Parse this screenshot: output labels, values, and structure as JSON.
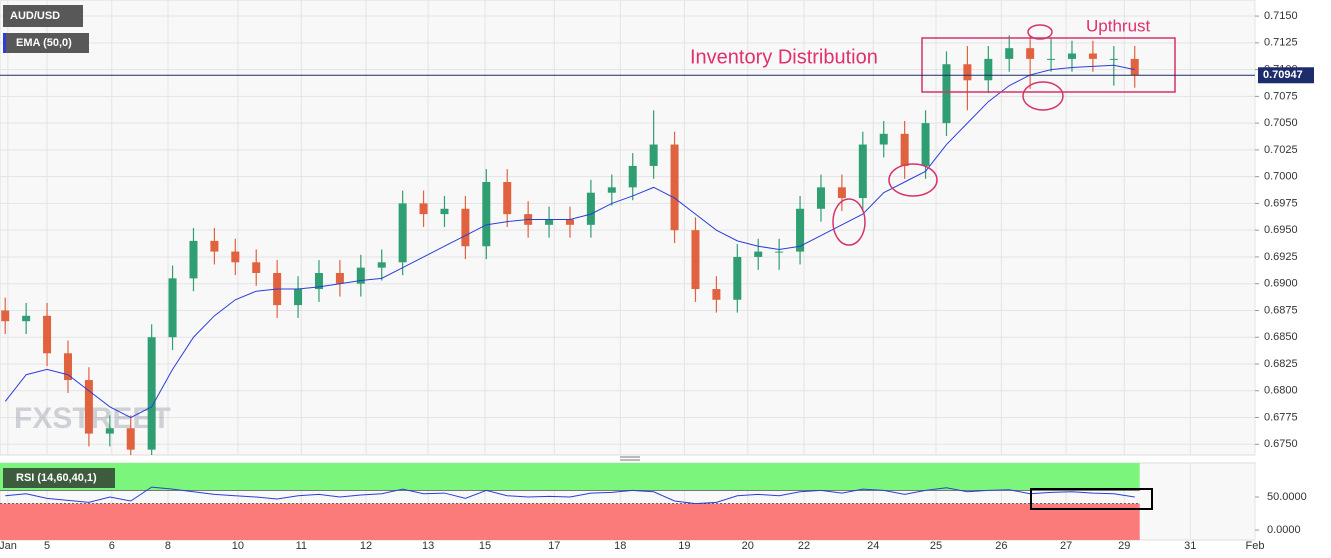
{
  "chart_data": [
    {
      "type": "candlestick",
      "title": "AUD/USD",
      "watermark": "FXSTREET",
      "annotations": [
        "Inventory Distribution",
        "Upthrust"
      ],
      "x": [
        0.08,
        0.4,
        0.72,
        1.04,
        1.36,
        1.68,
        2.0,
        2.32,
        2.64,
        2.96,
        3.28,
        3.6,
        3.92,
        4.24,
        4.56,
        4.88,
        5.2,
        5.52,
        5.84,
        6.16,
        6.48,
        6.8,
        7.12,
        7.44,
        7.76,
        8.08,
        8.4,
        8.72,
        9.04,
        9.36,
        9.68,
        10.0,
        10.32,
        10.64,
        10.96,
        11.28,
        11.6,
        11.92,
        12.24,
        12.56,
        12.88,
        13.2,
        13.52,
        13.84,
        14.16,
        14.48,
        14.8,
        15.12,
        15.44,
        15.76,
        16.08,
        16.4,
        16.72,
        17.04,
        17.36
      ],
      "open": [
        0.6875,
        0.6865,
        0.687,
        0.6835,
        0.681,
        0.676,
        0.6765,
        0.6745,
        0.685,
        0.6905,
        0.694,
        0.693,
        0.692,
        0.691,
        0.688,
        0.6895,
        0.691,
        0.69,
        0.6915,
        0.692,
        0.6975,
        0.6965,
        0.697,
        0.6935,
        0.6995,
        0.6965,
        0.6955,
        0.696,
        0.6955,
        0.6985,
        0.699,
        0.701,
        0.703,
        0.695,
        0.6895,
        0.6885,
        0.6925,
        0.693,
        0.693,
        0.697,
        0.699,
        0.698,
        0.703,
        0.704,
        0.701,
        0.705,
        0.7105,
        0.709,
        0.711,
        0.712,
        0.711,
        0.711,
        0.7115,
        0.711,
        0.711
      ],
      "high": [
        0.6887,
        0.6882,
        0.6882,
        0.6847,
        0.6822,
        0.6777,
        0.6777,
        0.6862,
        0.6917,
        0.6952,
        0.6952,
        0.6942,
        0.6932,
        0.6922,
        0.6907,
        0.6922,
        0.6922,
        0.6927,
        0.6932,
        0.6987,
        0.6987,
        0.6982,
        0.6982,
        0.7007,
        0.7007,
        0.6977,
        0.6972,
        0.6972,
        0.6997,
        0.7002,
        0.7022,
        0.7062,
        0.7042,
        0.6962,
        0.6907,
        0.6937,
        0.6942,
        0.6942,
        0.6982,
        0.7002,
        0.7002,
        0.7042,
        0.7052,
        0.7052,
        0.7062,
        0.7117,
        0.7122,
        0.7122,
        0.7132,
        0.7132,
        0.713,
        0.7127,
        0.7127,
        0.7122,
        0.7122
      ],
      "low": [
        0.6853,
        0.6853,
        0.6823,
        0.6798,
        0.6748,
        0.6748,
        0.6733,
        0.6733,
        0.6838,
        0.6893,
        0.6918,
        0.6908,
        0.6898,
        0.6868,
        0.6868,
        0.6883,
        0.6888,
        0.6888,
        0.6903,
        0.6908,
        0.6953,
        0.6953,
        0.6923,
        0.6923,
        0.6953,
        0.6943,
        0.6943,
        0.6943,
        0.6943,
        0.6973,
        0.6978,
        0.6998,
        0.6938,
        0.6883,
        0.6873,
        0.6873,
        0.6913,
        0.6913,
        0.6918,
        0.6958,
        0.6968,
        0.6968,
        0.7018,
        0.6998,
        0.6998,
        0.7038,
        0.7062,
        0.7078,
        0.7098,
        0.7082,
        0.7098,
        0.7098,
        0.7098,
        0.7085,
        0.7083
      ],
      "close": [
        0.6865,
        0.687,
        0.6835,
        0.681,
        0.676,
        0.6765,
        0.6745,
        0.685,
        0.6905,
        0.694,
        0.693,
        0.692,
        0.691,
        0.688,
        0.6895,
        0.691,
        0.69,
        0.6915,
        0.692,
        0.6975,
        0.6965,
        0.697,
        0.6935,
        0.6995,
        0.6965,
        0.6955,
        0.696,
        0.6955,
        0.6985,
        0.699,
        0.701,
        0.703,
        0.695,
        0.6895,
        0.6885,
        0.6925,
        0.693,
        0.693,
        0.697,
        0.699,
        0.698,
        0.703,
        0.704,
        0.701,
        0.705,
        0.7105,
        0.709,
        0.711,
        0.712,
        0.711,
        0.711,
        0.7115,
        0.711,
        0.711,
        0.70947
      ],
      "up_color": "#2f9e72",
      "down_color": "#e0623f",
      "ema": {
        "name": "EMA (50,0)",
        "color": "#2b3fd8",
        "values": [
          0.679,
          0.6815,
          0.682,
          0.6815,
          0.68,
          0.6785,
          0.6775,
          0.6785,
          0.682,
          0.685,
          0.687,
          0.6885,
          0.6893,
          0.6895,
          0.6895,
          0.6897,
          0.69,
          0.6903,
          0.6905,
          0.6915,
          0.6925,
          0.6935,
          0.6945,
          0.6955,
          0.6958,
          0.696,
          0.696,
          0.696,
          0.6965,
          0.6975,
          0.6982,
          0.699,
          0.698,
          0.6965,
          0.695,
          0.694,
          0.6935,
          0.6932,
          0.6935,
          0.6945,
          0.6955,
          0.6965,
          0.6985,
          0.6995,
          0.7005,
          0.703,
          0.705,
          0.707,
          0.7085,
          0.7095,
          0.71,
          0.7102,
          0.7103,
          0.7104,
          0.71
        ]
      },
      "xlim": [
        0,
        19.2
      ],
      "xticks": [
        {
          "value": 0.12,
          "label": "Jan"
        },
        {
          "value": 0.72,
          "label": "5"
        },
        {
          "value": 1.71,
          "label": "6"
        },
        {
          "value": 2.57,
          "label": "8"
        },
        {
          "value": 3.64,
          "label": "10"
        },
        {
          "value": 4.61,
          "label": "11"
        },
        {
          "value": 5.6,
          "label": "12"
        },
        {
          "value": 6.55,
          "label": "13"
        },
        {
          "value": 7.42,
          "label": "15"
        },
        {
          "value": 8.48,
          "label": "17"
        },
        {
          "value": 9.49,
          "label": "18"
        },
        {
          "value": 10.47,
          "label": "19"
        },
        {
          "value": 11.44,
          "label": "20"
        },
        {
          "value": 12.3,
          "label": "22"
        },
        {
          "value": 13.36,
          "label": "24"
        },
        {
          "value": 14.32,
          "label": "25"
        },
        {
          "value": 15.32,
          "label": "26"
        },
        {
          "value": 16.31,
          "label": "27"
        },
        {
          "value": 17.2,
          "label": "29"
        },
        {
          "value": 18.21,
          "label": "31"
        },
        {
          "value": 19.2,
          "label": "Feb"
        }
      ],
      "ylim": [
        0.674,
        0.7165
      ],
      "yticks": [
        {
          "value": 0.675,
          "label": "0.6750"
        },
        {
          "value": 0.6775,
          "label": "0.6775"
        },
        {
          "value": 0.68,
          "label": "0.6800"
        },
        {
          "value": 0.6825,
          "label": "0.6825"
        },
        {
          "value": 0.685,
          "label": "0.6850"
        },
        {
          "value": 0.6875,
          "label": "0.6875"
        },
        {
          "value": 0.69,
          "label": "0.6900"
        },
        {
          "value": 0.6925,
          "label": "0.6925"
        },
        {
          "value": 0.695,
          "label": "0.6950"
        },
        {
          "value": 0.6975,
          "label": "0.6975"
        },
        {
          "value": 0.7,
          "label": "0.7000"
        },
        {
          "value": 0.7025,
          "label": "0.7025"
        },
        {
          "value": 0.705,
          "label": "0.7050"
        },
        {
          "value": 0.7075,
          "label": "0.7075"
        },
        {
          "value": 0.71,
          "label": "0.7100"
        },
        {
          "value": 0.7125,
          "label": "0.7125"
        },
        {
          "value": 0.715,
          "label": "0.7150"
        }
      ],
      "grid": true
    },
    {
      "type": "line",
      "title": "RSI (14,60,40,1)",
      "color": "#2b3fd8",
      "overbought": 60,
      "oversold": 40,
      "overbought_color": "#7cf57c",
      "oversold_color": "#fb7b7b",
      "values": [
        52,
        55,
        48,
        45,
        42,
        50,
        44,
        65,
        62,
        58,
        54,
        52,
        50,
        47,
        52,
        54,
        50,
        53,
        55,
        62,
        55,
        56,
        48,
        60,
        52,
        50,
        51,
        50,
        56,
        57,
        60,
        58,
        44,
        40,
        42,
        52,
        54,
        52,
        58,
        60,
        56,
        62,
        60,
        54,
        60,
        64,
        58,
        60,
        61,
        55,
        57,
        58,
        56,
        55,
        50
      ],
      "ylim": [
        -15,
        101.5
      ],
      "yticks": [
        {
          "value": 0,
          "label": "0.0000"
        },
        {
          "value": 50,
          "label": "50.0000"
        }
      ]
    }
  ]
}
